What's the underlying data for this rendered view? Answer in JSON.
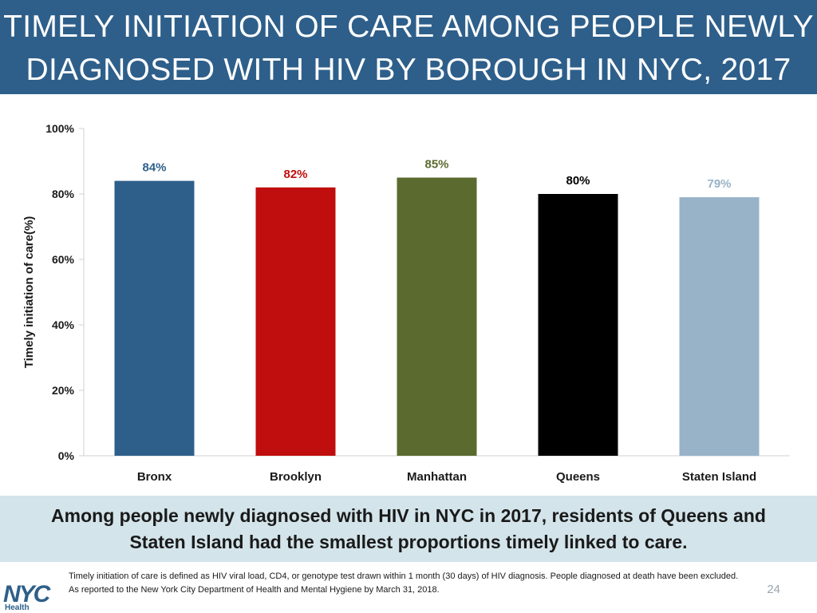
{
  "header": {
    "title_line1": "TIMELY INITIATION OF CARE AMONG PEOPLE NEWLY",
    "title_line2": "DIAGNOSED WITH HIV BY BOROUGH IN NYC, 2017"
  },
  "chart_data": {
    "type": "bar",
    "title": "TIMELY INITIATION OF CARE AMONG PEOPLE NEWLY DIAGNOSED WITH HIV BY BOROUGH IN NYC, 2017",
    "xlabel": "",
    "ylabel": "Timely initiation of care(%)",
    "ylim": [
      0,
      100
    ],
    "yticks": [
      0,
      20,
      40,
      60,
      80,
      100
    ],
    "ytick_labels": [
      "0%",
      "20%",
      "40%",
      "60%",
      "80%",
      "100%"
    ],
    "categories": [
      "Bronx",
      "Brooklyn",
      "Manhattan",
      "Queens",
      "Staten Island"
    ],
    "values": [
      84,
      82,
      85,
      80,
      79
    ],
    "data_labels": [
      "84%",
      "82%",
      "85%",
      "80%",
      "79%"
    ],
    "colors": [
      "#2e5f8a",
      "#c00d0d",
      "#5b6a2e",
      "#000000",
      "#98b3c8"
    ],
    "grid": false
  },
  "summary": {
    "line1": "Among people newly diagnosed with HIV in NYC in 2017, residents of Queens and",
    "line2": "Staten Island had the smallest proportions timely linked to care."
  },
  "footnotes": {
    "line1": "Timely initiation of care is defined as HIV viral load, CD4, or genotype test drawn within 1 month (30 days) of HIV diagnosis. People diagnosed at death have been excluded.",
    "line2": "As reported to the New York City Department of Health and Mental Hygiene by March 31, 2018."
  },
  "page_number": "24",
  "logo": {
    "text": "NYC",
    "subtext": "Health"
  }
}
